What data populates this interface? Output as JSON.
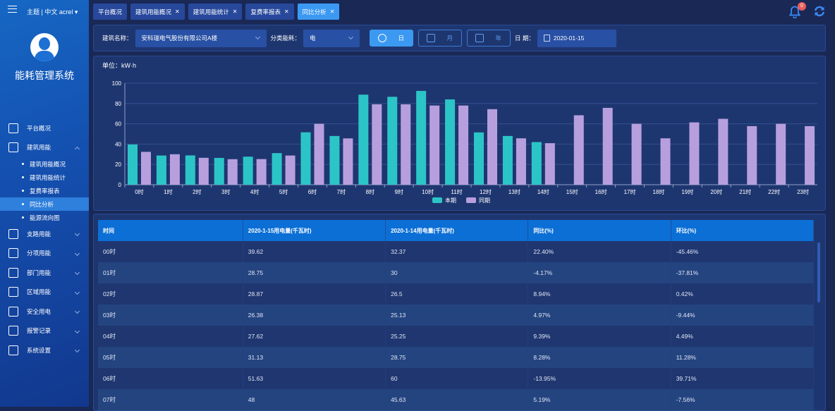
{
  "header": {
    "user_text": "主题 | 中文  acrel ▾",
    "notifications": "0"
  },
  "sidebar": {
    "title": "能耗管理系统",
    "items": [
      {
        "label": "平台概况",
        "icon": "monitor-icon"
      },
      {
        "label": "建筑用能",
        "icon": "building-icon",
        "expanded": true,
        "children": [
          "建筑用能概况",
          "建筑用能统计",
          "复费率报表",
          "同比分析",
          "能源流向图"
        ],
        "active_child": "同比分析"
      },
      {
        "label": "支路用能",
        "icon": "branch-icon"
      },
      {
        "label": "分项用能",
        "icon": "lightning-icon"
      },
      {
        "label": "部门用能",
        "icon": "folder-icon"
      },
      {
        "label": "区域用能",
        "icon": "map-icon"
      },
      {
        "label": "安全用电",
        "icon": "shield-icon"
      },
      {
        "label": "报警记录",
        "icon": "document-icon"
      },
      {
        "label": "系统设置",
        "icon": "settings-icon"
      }
    ]
  },
  "tabs": [
    {
      "label": "平台概况",
      "closable": false
    },
    {
      "label": "建筑用能概况",
      "closable": true
    },
    {
      "label": "建筑用能统计",
      "closable": true
    },
    {
      "label": "复费率报表",
      "closable": true
    },
    {
      "label": "同比分析",
      "closable": true,
      "active": true
    }
  ],
  "filters": {
    "building_label": "建筑名称：",
    "building_value": "安科瑞电气股份有限公司A楼",
    "category_label": "分类能耗：",
    "category_value": "电",
    "day": "日",
    "month": "月",
    "year": "年",
    "date_label": "日 期：",
    "date_value": "2020-01-15"
  },
  "chart_data": {
    "type": "bar",
    "unit": "单位：kW·h",
    "ylim": [
      0,
      100
    ],
    "yticks": [
      "0",
      "20",
      "40",
      "60",
      "80",
      "100"
    ],
    "grid": true,
    "legend_position": "bottom",
    "categories": [
      "0时",
      "1时",
      "2时",
      "3时",
      "4时",
      "5时",
      "6时",
      "7时",
      "8时",
      "9时",
      "10时",
      "11时",
      "12时",
      "13时",
      "14时",
      "15时",
      "16时",
      "17时",
      "18时",
      "19时",
      "20时",
      "21时",
      "22时",
      "23时"
    ],
    "series": [
      {
        "name": "本期",
        "color": "#2cc5c7",
        "values": [
          39.62,
          28.75,
          28.87,
          26.38,
          27.62,
          31.13,
          51.63,
          48,
          88.7,
          86.6,
          92.4,
          84,
          51.5,
          48,
          42,
          null,
          null,
          null,
          null,
          null,
          null,
          null,
          null,
          null
        ]
      },
      {
        "name": "同期",
        "color": "#b79fdd",
        "values": [
          32.37,
          30,
          26.5,
          25.13,
          25.25,
          28.75,
          60,
          45.63,
          79.2,
          79.2,
          78,
          78,
          74.4,
          45.7,
          40.9,
          68.4,
          75.7,
          60,
          45.7,
          61.4,
          64.9,
          57.7,
          60,
          57.7
        ]
      }
    ]
  },
  "table": {
    "headers": [
      "时间",
      "2020-1-15用电量(千瓦时)",
      "2020-1-14用电量(千瓦时)",
      "同比(%)",
      "环比(%)"
    ],
    "rows": [
      [
        "00时",
        "39.62",
        "32.37",
        "22.40%",
        "-45.46%"
      ],
      [
        "01时",
        "28.75",
        "30",
        "-4.17%",
        "-37.81%"
      ],
      [
        "02时",
        "28.87",
        "26.5",
        "8.94%",
        "0.42%"
      ],
      [
        "03时",
        "26.38",
        "25.13",
        "4.97%",
        "-9.44%"
      ],
      [
        "04时",
        "27.62",
        "25.25",
        "9.39%",
        "4.49%"
      ],
      [
        "05时",
        "31.13",
        "28.75",
        "8.28%",
        "11.28%"
      ],
      [
        "06时",
        "51.63",
        "60",
        "-13.95%",
        "39.71%"
      ],
      [
        "07时",
        "48",
        "45.63",
        "5.19%",
        "-7.56%"
      ]
    ]
  }
}
